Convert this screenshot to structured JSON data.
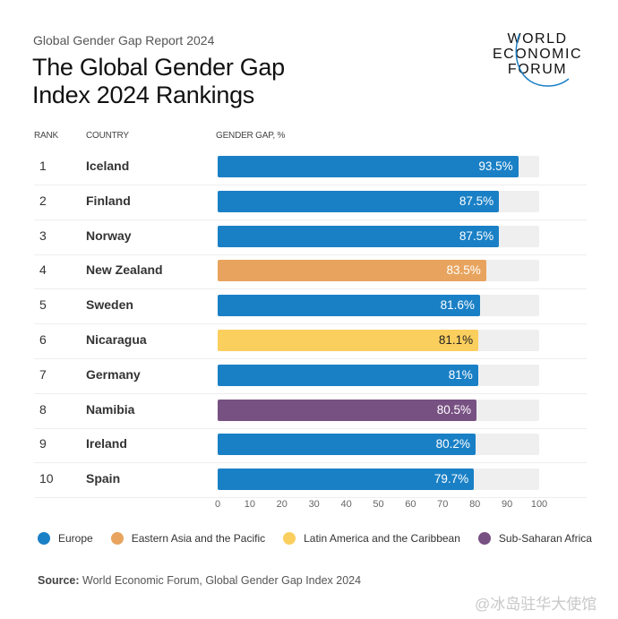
{
  "header": {
    "subtitle": "Global Gender Gap Report 2024",
    "title_line1": "The Global Gender Gap",
    "title_line2": "Index 2024 Rankings"
  },
  "logo": {
    "lines": [
      "WORLD",
      "ECONOMIC",
      "FORUM"
    ]
  },
  "chart_data": {
    "type": "bar",
    "orientation": "horizontal",
    "column_headers": {
      "rank": "RANK",
      "country": "COUNTRY",
      "value": "GENDER GAP, %"
    },
    "xlim": [
      0,
      100
    ],
    "ticks": [
      "0",
      "10",
      "20",
      "30",
      "40",
      "50",
      "60",
      "70",
      "80",
      "90",
      "100"
    ],
    "rows": [
      {
        "rank": "1",
        "country": "Iceland",
        "value": 93.5,
        "label": "93.5%",
        "region": "Europe"
      },
      {
        "rank": "2",
        "country": "Finland",
        "value": 87.5,
        "label": "87.5%",
        "region": "Europe"
      },
      {
        "rank": "3",
        "country": "Norway",
        "value": 87.5,
        "label": "87.5%",
        "region": "Europe"
      },
      {
        "rank": "4",
        "country": "New Zealand",
        "value": 83.5,
        "label": "83.5%",
        "region": "Eastern Asia and the Pacific"
      },
      {
        "rank": "5",
        "country": "Sweden",
        "value": 81.6,
        "label": "81.6%",
        "region": "Europe"
      },
      {
        "rank": "6",
        "country": "Nicaragua",
        "value": 81.1,
        "label": "81.1%",
        "region": "Latin America and the Caribbean"
      },
      {
        "rank": "7",
        "country": "Germany",
        "value": 81,
        "label": "81%",
        "region": "Europe"
      },
      {
        "rank": "8",
        "country": "Namibia",
        "value": 80.5,
        "label": "80.5%",
        "region": "Sub-Saharan Africa"
      },
      {
        "rank": "9",
        "country": "Ireland",
        "value": 80.2,
        "label": "80.2%",
        "region": "Europe"
      },
      {
        "rank": "10",
        "country": "Spain",
        "value": 79.7,
        "label": "79.7%",
        "region": "Europe"
      }
    ],
    "legend": [
      {
        "name": "Europe",
        "color": "#1a80c6"
      },
      {
        "name": "Eastern Asia and the Pacific",
        "color": "#e8a45e"
      },
      {
        "name": "Latin America and the Caribbean",
        "color": "#fbcf5e"
      },
      {
        "name": "Sub-Saharan Africa",
        "color": "#785183"
      }
    ],
    "legend_position": "bottom",
    "grid": false
  },
  "source": {
    "label": "Source:",
    "text": " World Economic Forum, Global Gender Gap Index 2024"
  },
  "watermark": "@冰岛驻华大使馆"
}
